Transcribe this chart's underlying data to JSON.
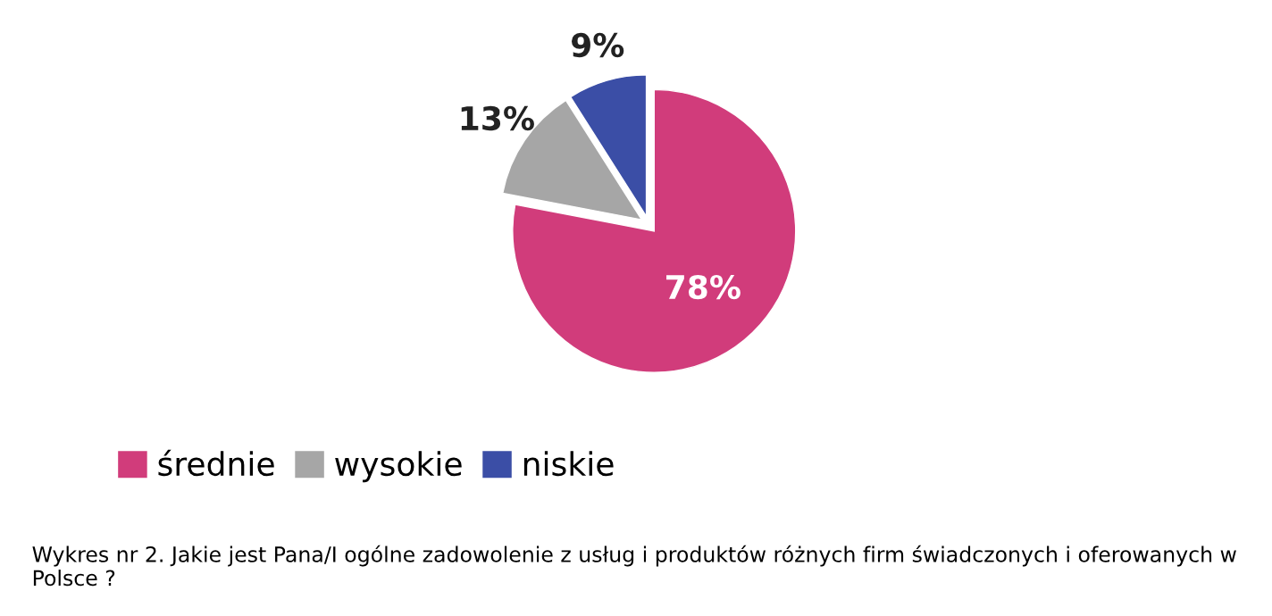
{
  "chart_data": {
    "type": "pie",
    "categories": [
      "średnie",
      "wysokie",
      "niskie"
    ],
    "values": [
      78,
      13,
      9
    ],
    "colors": [
      "#d13c7b",
      "#a6a6a6",
      "#3b4ea6"
    ],
    "value_labels": [
      "78%",
      "13%",
      "9%"
    ],
    "legend": "bottom left",
    "annotations": [
      "Wykres nr 2. Jakie jest Pana/I ogólne zadowolenie z usług i produktów różnych firm świadczonych i oferowanych w Polsce ?"
    ]
  }
}
